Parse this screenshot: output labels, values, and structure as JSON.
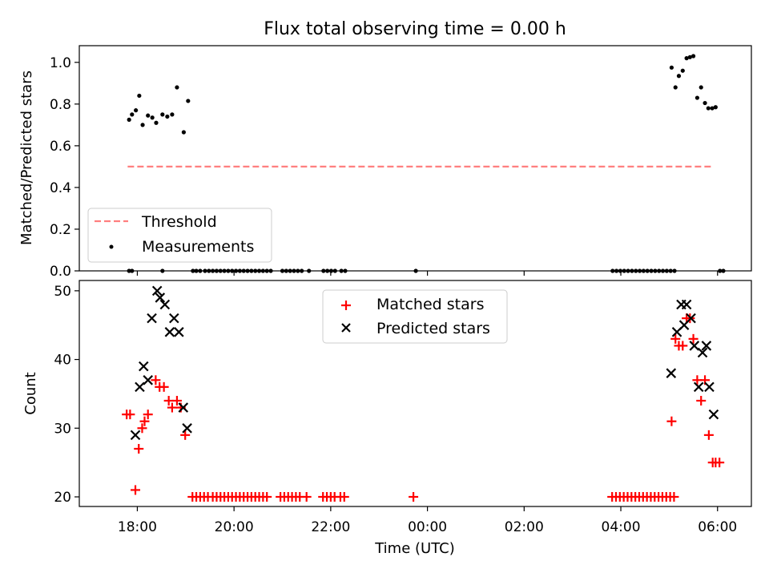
{
  "chart_data": [
    {
      "type": "scatter",
      "title": "Flux total observing time = 0.00 h",
      "xlabel": "",
      "ylabel": "Matched/Predicted stars",
      "xlim": [
        16.8,
        30.7
      ],
      "ylim": [
        0.0,
        1.08
      ],
      "y_ticks": [
        0.0,
        0.2,
        0.4,
        0.6,
        0.8,
        1.0
      ],
      "y_tick_labels": [
        "0.0",
        "0.2",
        "0.4",
        "0.6",
        "0.8",
        "1.0"
      ],
      "legend_position": "lower-left",
      "series": [
        {
          "name": "Threshold",
          "style": "dashed-line",
          "color": "#ff7f7f",
          "x": [
            17.8,
            29.9
          ],
          "y": [
            0.5,
            0.5
          ]
        },
        {
          "name": "Measurements",
          "style": "dots",
          "color": "#000000",
          "x": [
            17.83,
            17.89,
            17.97,
            18.04,
            18.11,
            18.22,
            18.31,
            18.39,
            18.52,
            18.62,
            18.72,
            18.82,
            18.96,
            19.05,
            29.05,
            29.13,
            29.2,
            29.28,
            29.36,
            29.43,
            29.5,
            29.58,
            29.66,
            29.74,
            29.81,
            29.89,
            29.96,
            17.83,
            17.89,
            18.52,
            19.15,
            19.22,
            19.3,
            19.4,
            19.48,
            19.56,
            19.64,
            19.72,
            19.8,
            19.88,
            19.96,
            20.04,
            20.12,
            20.2,
            20.28,
            20.36,
            20.44,
            20.52,
            20.6,
            20.68,
            20.76,
            21.0,
            21.08,
            21.16,
            21.24,
            21.32,
            21.4,
            21.55,
            21.85,
            21.93,
            22.01,
            22.09,
            22.22,
            22.3,
            23.76,
            27.83,
            27.91,
            27.99,
            28.07,
            28.15,
            28.23,
            28.31,
            28.39,
            28.47,
            28.55,
            28.63,
            28.71,
            28.79,
            28.87,
            28.95,
            29.03,
            29.11,
            30.05,
            30.12
          ],
          "y": [
            0.725,
            0.75,
            0.77,
            0.84,
            0.7,
            0.745,
            0.735,
            0.71,
            0.75,
            0.74,
            0.75,
            0.88,
            0.665,
            0.815,
            0.975,
            0.88,
            0.935,
            0.96,
            1.02,
            1.025,
            1.03,
            0.83,
            0.88,
            0.805,
            0.78,
            0.78,
            0.785,
            0.0,
            0.0,
            0.0,
            0.0,
            0.0,
            0.0,
            0.0,
            0.0,
            0.0,
            0.0,
            0.0,
            0.0,
            0.0,
            0.0,
            0.0,
            0.0,
            0.0,
            0.0,
            0.0,
            0.0,
            0.0,
            0.0,
            0.0,
            0.0,
            0.0,
            0.0,
            0.0,
            0.0,
            0.0,
            0.0,
            0.0,
            0.0,
            0.0,
            0.0,
            0.0,
            0.0,
            0.0,
            0.0,
            0.0,
            0.0,
            0.0,
            0.0,
            0.0,
            0.0,
            0.0,
            0.0,
            0.0,
            0.0,
            0.0,
            0.0,
            0.0,
            0.0,
            0.0,
            0.0,
            0.0,
            0.0,
            0.0
          ]
        }
      ]
    },
    {
      "type": "scatter",
      "title": "",
      "xlabel": "Time (UTC)",
      "ylabel": "Count",
      "xlim": [
        16.8,
        30.7
      ],
      "ylim": [
        18.6,
        51.5
      ],
      "y_ticks": [
        20,
        30,
        40,
        50
      ],
      "y_tick_labels": [
        "20",
        "30",
        "40",
        "50"
      ],
      "x_ticks": [
        18,
        20,
        22,
        24,
        26,
        28,
        30
      ],
      "x_tick_labels": [
        "18:00",
        "20:00",
        "22:00",
        "00:00",
        "02:00",
        "04:00",
        "06:00"
      ],
      "legend_position": "upper-center",
      "series": [
        {
          "name": "Matched stars",
          "style": "plus",
          "color": "#ff0000",
          "x": [
            17.78,
            17.85,
            17.96,
            18.03,
            18.1,
            18.15,
            18.22,
            18.38,
            18.46,
            18.55,
            18.65,
            18.72,
            18.82,
            18.9,
            18.99,
            19.14,
            19.22,
            19.3,
            19.38,
            19.46,
            19.56,
            19.64,
            19.72,
            19.8,
            19.88,
            19.96,
            20.04,
            20.12,
            20.2,
            20.28,
            20.36,
            20.44,
            20.52,
            20.6,
            20.68,
            20.96,
            21.04,
            21.12,
            21.2,
            21.28,
            21.36,
            21.5,
            21.84,
            21.92,
            22.0,
            22.08,
            22.2,
            22.28,
            23.71,
            27.82,
            27.9,
            27.98,
            28.06,
            28.14,
            28.22,
            28.3,
            28.38,
            28.46,
            28.54,
            28.62,
            28.7,
            28.78,
            28.86,
            28.94,
            29.02,
            29.1,
            29.05,
            29.13,
            29.2,
            29.28,
            29.36,
            29.43,
            29.5,
            29.58,
            29.66,
            29.74,
            29.82,
            29.9,
            29.96,
            30.04
          ],
          "y": [
            32,
            32,
            21,
            27,
            30,
            31,
            32,
            37,
            36,
            36,
            34,
            33,
            34,
            33,
            29,
            20,
            20,
            20,
            20,
            20,
            20,
            20,
            20,
            20,
            20,
            20,
            20,
            20,
            20,
            20,
            20,
            20,
            20,
            20,
            20,
            20,
            20,
            20,
            20,
            20,
            20,
            20,
            20,
            20,
            20,
            20,
            20,
            20,
            20,
            20,
            20,
            20,
            20,
            20,
            20,
            20,
            20,
            20,
            20,
            20,
            20,
            20,
            20,
            20,
            20,
            20,
            31,
            43,
            42,
            42,
            46,
            46,
            43,
            37,
            34,
            37,
            29,
            25,
            25,
            25
          ]
        },
        {
          "name": "Predicted stars",
          "style": "x",
          "color": "#000000",
          "x": [
            17.96,
            18.05,
            18.13,
            18.22,
            18.3,
            18.41,
            18.47,
            18.57,
            18.67,
            18.76,
            18.86,
            18.95,
            19.03,
            29.04,
            29.16,
            29.25,
            29.31,
            29.36,
            29.45,
            29.52,
            29.61,
            29.69,
            29.77,
            29.83,
            29.92
          ],
          "y": [
            29,
            36,
            39,
            37,
            46,
            50,
            49,
            48,
            44,
            46,
            44,
            33,
            30,
            38,
            44,
            48,
            45,
            48,
            46,
            42,
            36,
            41,
            42,
            36,
            32
          ]
        }
      ]
    }
  ]
}
